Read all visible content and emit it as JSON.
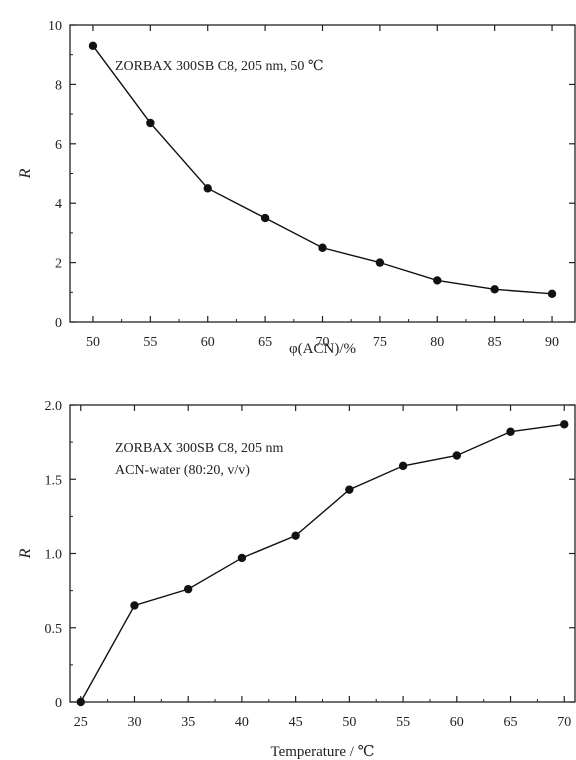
{
  "chart_data": [
    {
      "type": "line",
      "title": "",
      "xlabel": "φ(ACN)/%",
      "ylabel": "R",
      "annotations": [
        "ZORBAX 300SB C8, 205 nm, 50 ℃"
      ],
      "xlim": [
        48,
        92
      ],
      "ylim": [
        0,
        10
      ],
      "xticks": [
        50,
        55,
        60,
        65,
        70,
        75,
        80,
        85,
        90
      ],
      "yticks": [
        0,
        2,
        4,
        6,
        8,
        10
      ],
      "grid": false,
      "series": [
        {
          "x": [
            50,
            55,
            60,
            65,
            70,
            75,
            80,
            85,
            90
          ],
          "y": [
            9.3,
            6.7,
            4.5,
            3.5,
            2.5,
            2.0,
            1.4,
            1.1,
            0.95
          ]
        }
      ]
    },
    {
      "type": "line",
      "title": "",
      "xlabel": "Temperature / ℃",
      "ylabel": "R",
      "annotations": [
        "ZORBAX 300SB C8, 205 nm",
        "ACN-water (80:20, v/v)"
      ],
      "xlim": [
        24,
        71
      ],
      "ylim": [
        0,
        2.0
      ],
      "xticks": [
        25,
        30,
        35,
        40,
        45,
        50,
        55,
        60,
        65,
        70
      ],
      "yticks": [
        0,
        0.5,
        1.0,
        1.5,
        2.0
      ],
      "ytick_labels": [
        "0",
        "0.5",
        "1.0",
        "1.5",
        "2.0"
      ],
      "grid": false,
      "series": [
        {
          "x": [
            25,
            30,
            35,
            40,
            45,
            50,
            55,
            60,
            65,
            70
          ],
          "y": [
            0.0,
            0.65,
            0.76,
            0.97,
            1.12,
            1.43,
            1.59,
            1.66,
            1.82,
            1.87
          ]
        }
      ]
    }
  ]
}
